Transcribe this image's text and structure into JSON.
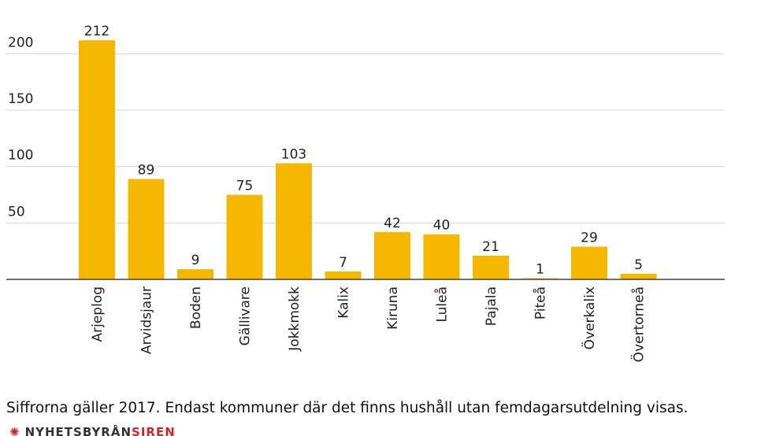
{
  "chart_data": {
    "type": "bar",
    "categories": [
      "Arjeplog",
      "Arvidsjaur",
      "Boden",
      "Gällivare",
      "Jokkmokk",
      "Kalix",
      "Kiruna",
      "Luleå",
      "Pajala",
      "Piteå",
      "Överkalix",
      "Övertorneå"
    ],
    "values": [
      212,
      89,
      9,
      75,
      103,
      7,
      42,
      40,
      21,
      1,
      29,
      5
    ],
    "yticks": [
      50,
      100,
      150,
      200
    ],
    "ylim": [
      0,
      230
    ],
    "grid": true,
    "bar_color": "#f5b700",
    "data_labels": true
  },
  "footnote": "Siffrorna gäller 2017. Endast kommuner där det finns hushåll utan femdagarsutdelning visas.",
  "brand": {
    "name_part1": "NYHETSBYRÅN",
    "name_part2": "SIREN",
    "accent_color": "#d2232a"
  }
}
